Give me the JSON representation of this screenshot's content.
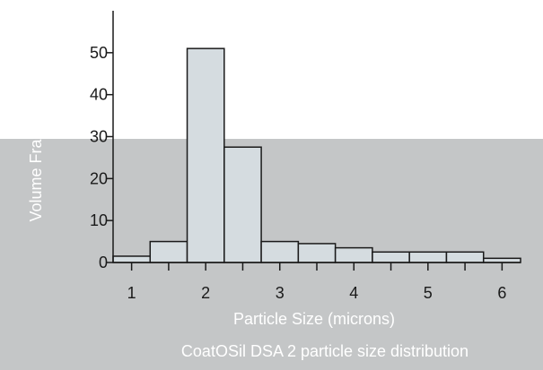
{
  "caption": "CoatOSil DSA 2 particle size distribution",
  "chart_data": {
    "type": "bar",
    "title": "",
    "xlabel": "Particle Size (microns)",
    "ylabel": "Volume Fraction (%)",
    "xlim": [
      0.75,
      6.25
    ],
    "ylim": [
      0,
      60
    ],
    "x_ticks": [
      1,
      2,
      3,
      4,
      5,
      6
    ],
    "x_tick_labels": [
      "1",
      "2",
      "3",
      "4",
      "5",
      "6"
    ],
    "y_ticks": [
      0,
      10,
      20,
      30,
      40,
      50
    ],
    "y_tick_labels": [
      "0",
      "10",
      "20",
      "30",
      "40",
      "50"
    ],
    "grid": false,
    "bin_width": 0.5,
    "bins": [
      {
        "start": 0.75,
        "end": 1.25,
        "value": 1.5
      },
      {
        "start": 1.25,
        "end": 1.75,
        "value": 5
      },
      {
        "start": 1.75,
        "end": 2.25,
        "value": 51
      },
      {
        "start": 2.25,
        "end": 2.75,
        "value": 27.5
      },
      {
        "start": 2.75,
        "end": 3.25,
        "value": 5
      },
      {
        "start": 3.25,
        "end": 3.75,
        "value": 4.5
      },
      {
        "start": 3.75,
        "end": 4.25,
        "value": 3.5
      },
      {
        "start": 4.25,
        "end": 4.75,
        "value": 2.5
      },
      {
        "start": 4.75,
        "end": 5.25,
        "value": 2.5
      },
      {
        "start": 5.25,
        "end": 5.75,
        "value": 2.5
      },
      {
        "start": 5.75,
        "end": 6.25,
        "value": 1
      }
    ],
    "colors": {
      "bar_fill": "#d5dce0",
      "bar_stroke": "#1a1a1a",
      "background_band": "#c4c6c7"
    }
  }
}
